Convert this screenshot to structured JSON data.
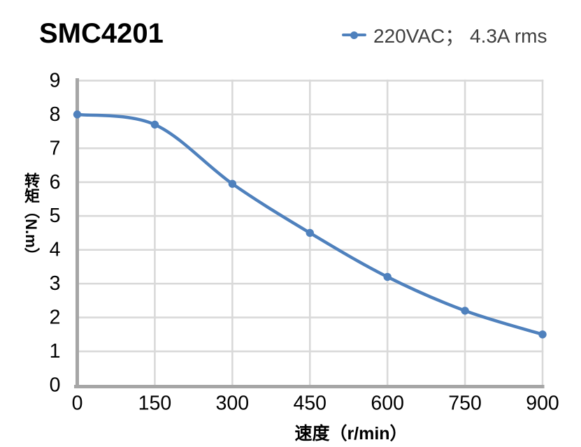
{
  "page": {
    "title": "SMC4201"
  },
  "legend": {
    "series_label": "220VAC； 4.3A rms"
  },
  "chart_data": {
    "type": "line",
    "title": "SMC4201",
    "xlabel": "速度（r/min）",
    "ylabel": "转矩（N.m）",
    "xlim": [
      0,
      900
    ],
    "ylim": [
      0,
      9
    ],
    "xticks": [
      0,
      150,
      300,
      450,
      600,
      750,
      900
    ],
    "yticks": [
      0,
      1,
      2,
      3,
      4,
      5,
      6,
      7,
      8,
      9
    ],
    "grid": true,
    "smooth": true,
    "legend_position": "top-right",
    "series": [
      {
        "name": "220VAC； 4.3A rms",
        "x": [
          0,
          150,
          300,
          450,
          600,
          750,
          900
        ],
        "y": [
          8.0,
          7.7,
          5.95,
          4.5,
          3.2,
          2.2,
          1.5
        ],
        "marker": "circle"
      }
    ],
    "colors": {
      "series": "#4F81BD",
      "gridline": "#D9D9D9",
      "axis": "#A6A6A6",
      "tick_label": "#000000",
      "axis_title": "#000000",
      "legend_text": "#3F3F3F",
      "title": "#000000",
      "background": "#FFFFFF"
    }
  }
}
